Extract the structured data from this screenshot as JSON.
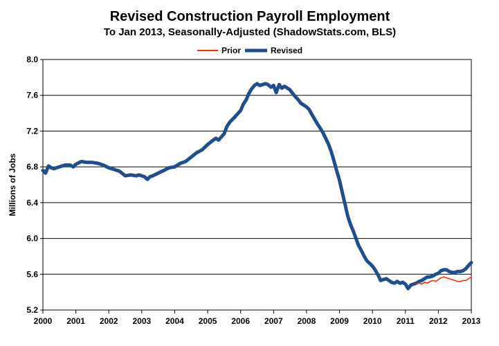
{
  "chart_data": {
    "type": "line",
    "title": "Revised Construction Payroll Employment",
    "subtitle": "To Jan 2013, Seasonally-Adjusted (ShadowStats.com, BLS)",
    "xlabel": "",
    "ylabel": "Millions of Jobs",
    "xlim": [
      2000,
      2013
    ],
    "ylim": [
      5.2,
      8.0
    ],
    "x_ticks": [
      "2000",
      "2001",
      "2002",
      "2003",
      "2004",
      "2005",
      "2006",
      "2007",
      "2008",
      "2009",
      "2010",
      "2011",
      "2012",
      "2013"
    ],
    "y_ticks": [
      "5.2",
      "5.6",
      "6.0",
      "6.4",
      "6.8",
      "7.2",
      "7.6",
      "8.0"
    ],
    "grid": true,
    "legend_position": "top-center",
    "series": [
      {
        "name": "Prior",
        "color": "#ff2a00",
        "points": [
          [
            2011.33,
            5.49
          ],
          [
            2011.42,
            5.5
          ],
          [
            2011.5,
            5.49
          ],
          [
            2011.58,
            5.51
          ],
          [
            2011.67,
            5.5
          ],
          [
            2011.75,
            5.52
          ],
          [
            2011.83,
            5.53
          ],
          [
            2011.92,
            5.52
          ],
          [
            2012.0,
            5.54
          ],
          [
            2012.08,
            5.56
          ],
          [
            2012.17,
            5.57
          ],
          [
            2012.25,
            5.56
          ],
          [
            2012.33,
            5.55
          ],
          [
            2012.42,
            5.54
          ],
          [
            2012.5,
            5.53
          ],
          [
            2012.58,
            5.52
          ],
          [
            2012.67,
            5.52
          ],
          [
            2012.75,
            5.53
          ],
          [
            2012.83,
            5.53
          ],
          [
            2012.92,
            5.55
          ],
          [
            2013.0,
            5.57
          ]
        ]
      },
      {
        "name": "Revised",
        "color": "#1f4e8c",
        "points": [
          [
            2000.0,
            6.76
          ],
          [
            2000.08,
            6.73
          ],
          [
            2000.17,
            6.81
          ],
          [
            2000.25,
            6.79
          ],
          [
            2000.33,
            6.78
          ],
          [
            2000.5,
            6.8
          ],
          [
            2000.67,
            6.82
          ],
          [
            2000.83,
            6.82
          ],
          [
            2000.92,
            6.8
          ],
          [
            2001.0,
            6.83
          ],
          [
            2001.17,
            6.86
          ],
          [
            2001.33,
            6.85
          ],
          [
            2001.5,
            6.85
          ],
          [
            2001.67,
            6.84
          ],
          [
            2001.83,
            6.82
          ],
          [
            2002.0,
            6.79
          ],
          [
            2002.17,
            6.77
          ],
          [
            2002.33,
            6.75
          ],
          [
            2002.5,
            6.7
          ],
          [
            2002.67,
            6.71
          ],
          [
            2002.83,
            6.7
          ],
          [
            2002.92,
            6.71
          ],
          [
            2003.0,
            6.7
          ],
          [
            2003.08,
            6.69
          ],
          [
            2003.17,
            6.66
          ],
          [
            2003.25,
            6.69
          ],
          [
            2003.33,
            6.7
          ],
          [
            2003.5,
            6.73
          ],
          [
            2003.67,
            6.76
          ],
          [
            2003.83,
            6.79
          ],
          [
            2004.0,
            6.8
          ],
          [
            2004.17,
            6.84
          ],
          [
            2004.33,
            6.86
          ],
          [
            2004.5,
            6.91
          ],
          [
            2004.67,
            6.96
          ],
          [
            2004.83,
            6.99
          ],
          [
            2005.0,
            7.05
          ],
          [
            2005.17,
            7.1
          ],
          [
            2005.25,
            7.12
          ],
          [
            2005.33,
            7.1
          ],
          [
            2005.5,
            7.17
          ],
          [
            2005.58,
            7.25
          ],
          [
            2005.67,
            7.3
          ],
          [
            2005.83,
            7.36
          ],
          [
            2006.0,
            7.43
          ],
          [
            2006.08,
            7.5
          ],
          [
            2006.17,
            7.55
          ],
          [
            2006.25,
            7.62
          ],
          [
            2006.33,
            7.67
          ],
          [
            2006.42,
            7.71
          ],
          [
            2006.5,
            7.73
          ],
          [
            2006.58,
            7.71
          ],
          [
            2006.67,
            7.72
          ],
          [
            2006.75,
            7.73
          ],
          [
            2006.83,
            7.72
          ],
          [
            2006.92,
            7.69
          ],
          [
            2007.0,
            7.71
          ],
          [
            2007.08,
            7.63
          ],
          [
            2007.17,
            7.72
          ],
          [
            2007.25,
            7.68
          ],
          [
            2007.33,
            7.7
          ],
          [
            2007.42,
            7.68
          ],
          [
            2007.5,
            7.66
          ],
          [
            2007.58,
            7.62
          ],
          [
            2007.67,
            7.58
          ],
          [
            2007.75,
            7.55
          ],
          [
            2007.83,
            7.51
          ],
          [
            2007.92,
            7.49
          ],
          [
            2008.0,
            7.47
          ],
          [
            2008.08,
            7.44
          ],
          [
            2008.17,
            7.38
          ],
          [
            2008.25,
            7.33
          ],
          [
            2008.33,
            7.28
          ],
          [
            2008.42,
            7.23
          ],
          [
            2008.5,
            7.18
          ],
          [
            2008.58,
            7.12
          ],
          [
            2008.67,
            7.05
          ],
          [
            2008.75,
            6.97
          ],
          [
            2008.83,
            6.87
          ],
          [
            2008.92,
            6.75
          ],
          [
            2009.0,
            6.65
          ],
          [
            2009.08,
            6.52
          ],
          [
            2009.17,
            6.38
          ],
          [
            2009.25,
            6.25
          ],
          [
            2009.33,
            6.16
          ],
          [
            2009.42,
            6.08
          ],
          [
            2009.5,
            6.0
          ],
          [
            2009.58,
            5.92
          ],
          [
            2009.67,
            5.86
          ],
          [
            2009.75,
            5.8
          ],
          [
            2009.83,
            5.75
          ],
          [
            2009.92,
            5.72
          ],
          [
            2010.0,
            5.69
          ],
          [
            2010.08,
            5.65
          ],
          [
            2010.17,
            5.59
          ],
          [
            2010.25,
            5.53
          ],
          [
            2010.33,
            5.54
          ],
          [
            2010.42,
            5.55
          ],
          [
            2010.5,
            5.53
          ],
          [
            2010.58,
            5.51
          ],
          [
            2010.67,
            5.5
          ],
          [
            2010.75,
            5.52
          ],
          [
            2010.83,
            5.5
          ],
          [
            2010.92,
            5.51
          ],
          [
            2011.0,
            5.49
          ],
          [
            2011.08,
            5.44
          ],
          [
            2011.17,
            5.48
          ],
          [
            2011.25,
            5.49
          ],
          [
            2011.33,
            5.5
          ],
          [
            2011.42,
            5.52
          ],
          [
            2011.5,
            5.53
          ],
          [
            2011.58,
            5.55
          ],
          [
            2011.67,
            5.57
          ],
          [
            2011.75,
            5.57
          ],
          [
            2011.83,
            5.58
          ],
          [
            2011.92,
            5.6
          ],
          [
            2012.0,
            5.61
          ],
          [
            2012.08,
            5.64
          ],
          [
            2012.17,
            5.65
          ],
          [
            2012.25,
            5.65
          ],
          [
            2012.33,
            5.63
          ],
          [
            2012.42,
            5.62
          ],
          [
            2012.5,
            5.62
          ],
          [
            2012.58,
            5.63
          ],
          [
            2012.67,
            5.63
          ],
          [
            2012.75,
            5.64
          ],
          [
            2012.83,
            5.66
          ],
          [
            2012.92,
            5.7
          ],
          [
            2013.0,
            5.73
          ]
        ]
      }
    ]
  }
}
